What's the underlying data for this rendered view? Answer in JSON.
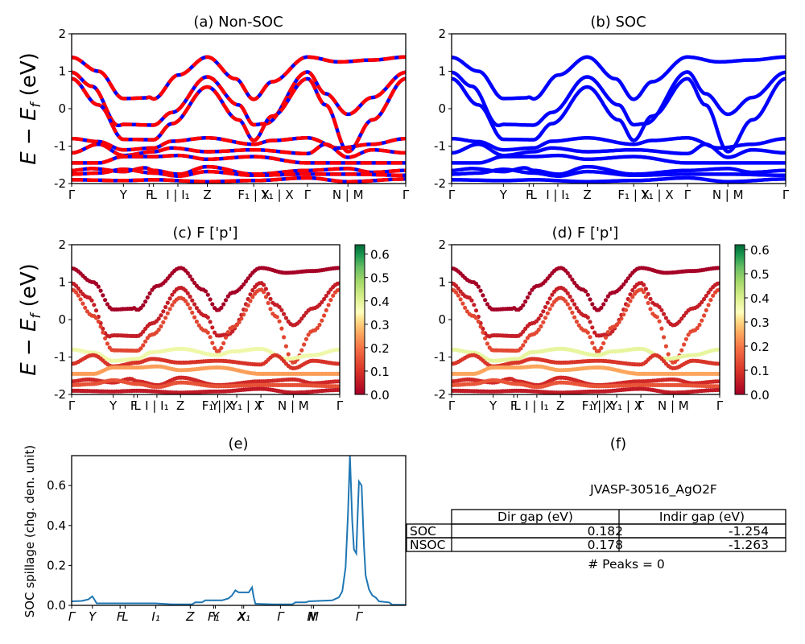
{
  "chart_data": [
    {
      "id": "a",
      "type": "line",
      "title": "(a) Non-SOC",
      "ylabel": "E − E_f (eV)",
      "ylim": [
        -2,
        2
      ],
      "yticks": [
        -2,
        -1,
        0,
        1,
        2
      ],
      "x_ticks": [
        {
          "pos": 0.0,
          "label": "Γ"
        },
        {
          "pos": 0.155,
          "label": "Y"
        },
        {
          "pos": 0.232,
          "label": "F"
        },
        {
          "pos": 0.245,
          "label": "L"
        },
        {
          "pos": 0.318,
          "label": "I | I₁"
        },
        {
          "pos": 0.406,
          "label": "Z"
        },
        {
          "pos": 0.545,
          "label": "F₁ | X"
        },
        {
          "pos": 0.616,
          "label": "Y₁ | X"
        },
        {
          "pos": 0.706,
          "label": "Γ"
        },
        {
          "pos": 0.827,
          "label": "N | M"
        },
        {
          "pos": 1.0,
          "label": "Γ"
        }
      ],
      "series_style": "red solid overlaid with blue dashed (two calculations coincide)",
      "colors": {
        "primary": "#ff0000",
        "secondary": "#0000ff"
      },
      "bands": [
        [
          [
            0,
            1.37
          ],
          [
            0.08,
            1.0
          ],
          [
            0.155,
            0.27
          ],
          [
            0.225,
            0.29
          ],
          [
            0.232,
            0.31
          ],
          [
            0.245,
            0.26
          ],
          [
            0.32,
            0.9
          ],
          [
            0.406,
            1.38
          ],
          [
            0.49,
            0.8
          ],
          [
            0.545,
            0.25
          ],
          [
            0.6,
            0.72
          ],
          [
            0.706,
            1.38
          ],
          [
            0.8,
            1.25
          ],
          [
            0.9,
            1.3
          ],
          [
            1.0,
            1.38
          ]
        ],
        [
          [
            0,
            0.97
          ],
          [
            0.06,
            0.6
          ],
          [
            0.14,
            -0.45
          ],
          [
            0.155,
            -0.42
          ],
          [
            0.245,
            -0.44
          ],
          [
            0.3,
            -0.1
          ],
          [
            0.406,
            0.85
          ],
          [
            0.5,
            0.1
          ],
          [
            0.545,
            -0.43
          ],
          [
            0.58,
            -0.4
          ],
          [
            0.706,
            0.98
          ],
          [
            0.76,
            0.4
          ],
          [
            0.827,
            -0.15
          ],
          [
            0.9,
            0.3
          ],
          [
            1.0,
            0.97
          ]
        ],
        [
          [
            0,
            0.8
          ],
          [
            0.08,
            0.1
          ],
          [
            0.155,
            -0.82
          ],
          [
            0.245,
            -0.83
          ],
          [
            0.3,
            -0.4
          ],
          [
            0.406,
            0.58
          ],
          [
            0.5,
            -0.3
          ],
          [
            0.545,
            -0.85
          ],
          [
            0.6,
            -0.2
          ],
          [
            0.706,
            0.8
          ],
          [
            0.76,
            0.1
          ],
          [
            0.827,
            -1.15
          ],
          [
            0.9,
            -0.3
          ],
          [
            1.0,
            0.8
          ]
        ],
        [
          [
            0,
            -0.8
          ],
          [
            0.08,
            -0.88
          ],
          [
            0.155,
            -1.1
          ],
          [
            0.245,
            -1.05
          ],
          [
            0.3,
            -0.87
          ],
          [
            0.406,
            -0.78
          ],
          [
            0.545,
            -0.95
          ],
          [
            0.6,
            -0.85
          ],
          [
            0.706,
            -0.78
          ],
          [
            0.8,
            -1.05
          ],
          [
            0.9,
            -0.95
          ],
          [
            1.0,
            -0.8
          ]
        ],
        [
          [
            0,
            -1.18
          ],
          [
            0.08,
            -0.95
          ],
          [
            0.155,
            -1.25
          ],
          [
            0.245,
            -1.15
          ],
          [
            0.3,
            -1.05
          ],
          [
            0.406,
            -1.15
          ],
          [
            0.545,
            -1.1
          ],
          [
            0.706,
            -1.2
          ],
          [
            0.76,
            -0.95
          ],
          [
            0.827,
            -1.3
          ],
          [
            0.9,
            -1.1
          ],
          [
            1.0,
            -1.18
          ]
        ],
        [
          [
            0,
            -1.45
          ],
          [
            0.08,
            -1.45
          ],
          [
            0.155,
            -1.28
          ],
          [
            0.245,
            -1.28
          ],
          [
            0.32,
            -1.25
          ],
          [
            0.406,
            -1.35
          ],
          [
            0.545,
            -1.28
          ],
          [
            0.706,
            -1.45
          ],
          [
            0.827,
            -1.45
          ],
          [
            1.0,
            -1.45
          ]
        ],
        [
          [
            0,
            -1.65
          ],
          [
            0.06,
            -1.6
          ],
          [
            0.155,
            -1.68
          ],
          [
            0.22,
            -1.58
          ],
          [
            0.245,
            -1.65
          ],
          [
            0.32,
            -1.75
          ],
          [
            0.406,
            -1.55
          ],
          [
            0.545,
            -1.75
          ],
          [
            0.706,
            -1.65
          ],
          [
            0.827,
            -1.6
          ],
          [
            0.9,
            -1.7
          ],
          [
            1.0,
            -1.65
          ]
        ],
        [
          [
            0,
            -1.75
          ],
          [
            0.08,
            -1.72
          ],
          [
            0.155,
            -1.62
          ],
          [
            0.245,
            -1.72
          ],
          [
            0.32,
            -1.8
          ],
          [
            0.406,
            -1.68
          ],
          [
            0.545,
            -1.78
          ],
          [
            0.706,
            -1.75
          ],
          [
            0.827,
            -1.75
          ],
          [
            1.0,
            -1.78
          ]
        ],
        [
          [
            0,
            -1.9
          ],
          [
            0.155,
            -1.92
          ],
          [
            0.245,
            -1.9
          ],
          [
            0.406,
            -1.95
          ],
          [
            0.545,
            -1.92
          ],
          [
            0.706,
            -1.85
          ],
          [
            0.827,
            -1.95
          ],
          [
            1.0,
            -1.88
          ]
        ]
      ]
    },
    {
      "id": "b",
      "type": "line",
      "title": "(b) SOC",
      "ylim": [
        -2,
        2
      ],
      "yticks": [
        -2,
        -1,
        0,
        1,
        2
      ],
      "x_ticks_same_as": "a",
      "colors": {
        "primary": "#0000ff"
      },
      "bands_same_as": "a"
    },
    {
      "id": "c",
      "type": "scatter",
      "title": "(c)  F ['p']",
      "ylabel": "E − E_f (eV)",
      "ylim": [
        -2,
        2
      ],
      "yticks": [
        -2,
        -1,
        0,
        1,
        2
      ],
      "x_ticks": [
        {
          "pos": 0.0,
          "label": "Γ"
        },
        {
          "pos": 0.155,
          "label": "Y"
        },
        {
          "pos": 0.232,
          "label": "F"
        },
        {
          "pos": 0.245,
          "label": "L"
        },
        {
          "pos": 0.318,
          "label": "I | I₁"
        },
        {
          "pos": 0.406,
          "label": "Z"
        },
        {
          "pos": 0.545,
          "label": "F₁ | X"
        },
        {
          "pos": 0.616,
          "label": "Y | Y₁ | X"
        },
        {
          "pos": 0.706,
          "label": "Γ"
        },
        {
          "pos": 0.827,
          "label": "N | M"
        },
        {
          "pos": 1.0,
          "label": "Γ"
        }
      ],
      "colorbar": {
        "cmap": "RdYlGn",
        "range": [
          0.0,
          0.64
        ],
        "ticks": [
          0.0,
          0.1,
          0.2,
          0.3,
          0.4,
          0.5,
          0.6
        ]
      },
      "band_weights": [
        0.0,
        0.06,
        0.13,
        0.38,
        0.1,
        0.25,
        0.08,
        0.15,
        0.05
      ]
    },
    {
      "id": "d",
      "type": "scatter",
      "title": "(d) F ['p']",
      "ylim": [
        -2,
        2
      ],
      "yticks": [
        -2,
        -1,
        0,
        1,
        2
      ],
      "x_ticks_same_as": "c",
      "colorbar": {
        "cmap": "RdYlGn",
        "range": [
          0.0,
          0.62
        ],
        "ticks": [
          0.0,
          0.1,
          0.2,
          0.3,
          0.4,
          0.5,
          0.6
        ]
      },
      "band_weights": [
        0.0,
        0.06,
        0.13,
        0.38,
        0.1,
        0.25,
        0.08,
        0.15,
        0.05
      ]
    },
    {
      "id": "e",
      "type": "line",
      "title": "(e)",
      "ylabel": "SOC spillage (chg. den. unit)",
      "ylim": [
        0,
        0.75
      ],
      "yticks": [
        0.0,
        0.2,
        0.4,
        0.6
      ],
      "x_ticks": [
        {
          "pos": 0.0,
          "label": "Γ"
        },
        {
          "pos": 0.062,
          "label": "Y"
        },
        {
          "pos": 0.145,
          "label": "F"
        },
        {
          "pos": 0.16,
          "label": "L"
        },
        {
          "pos": 0.252,
          "label": "I₁"
        },
        {
          "pos": 0.355,
          "label": "Z"
        },
        {
          "pos": 0.425,
          "label": "F₁"
        },
        {
          "pos": 0.43,
          "label": "Y"
        },
        {
          "pos": 0.51,
          "label": "X"
        },
        {
          "pos": 0.515,
          "label": "X₁"
        },
        {
          "pos": 0.625,
          "label": "Γ"
        },
        {
          "pos": 0.718,
          "label": "N"
        },
        {
          "pos": 0.724,
          "label": "M"
        },
        {
          "pos": 0.86,
          "label": "Γ"
        }
      ],
      "color": "#1f77b4",
      "points": [
        [
          0,
          0.02
        ],
        [
          0.03,
          0.022
        ],
        [
          0.05,
          0.03
        ],
        [
          0.062,
          0.045
        ],
        [
          0.068,
          0.03
        ],
        [
          0.075,
          0.01
        ],
        [
          0.2,
          0.01
        ],
        [
          0.25,
          0.01
        ],
        [
          0.3,
          0.005
        ],
        [
          0.36,
          0.005
        ],
        [
          0.37,
          0.015
        ],
        [
          0.39,
          0.015
        ],
        [
          0.4,
          0.025
        ],
        [
          0.45,
          0.025
        ],
        [
          0.47,
          0.035
        ],
        [
          0.48,
          0.05
        ],
        [
          0.49,
          0.075
        ],
        [
          0.5,
          0.065
        ],
        [
          0.53,
          0.065
        ],
        [
          0.54,
          0.09
        ],
        [
          0.545,
          0.04
        ],
        [
          0.55,
          0.008
        ],
        [
          0.6,
          0.005
        ],
        [
          0.66,
          0.005
        ],
        [
          0.67,
          0.015
        ],
        [
          0.7,
          0.015
        ],
        [
          0.71,
          0.02
        ],
        [
          0.78,
          0.025
        ],
        [
          0.8,
          0.04
        ],
        [
          0.81,
          0.07
        ],
        [
          0.82,
          0.19
        ],
        [
          0.827,
          0.45
        ],
        [
          0.833,
          0.75
        ],
        [
          0.84,
          0.42
        ],
        [
          0.845,
          0.28
        ],
        [
          0.852,
          0.26
        ],
        [
          0.855,
          0.4
        ],
        [
          0.86,
          0.62
        ],
        [
          0.868,
          0.6
        ],
        [
          0.875,
          0.3
        ],
        [
          0.88,
          0.15
        ],
        [
          0.89,
          0.08
        ],
        [
          0.9,
          0.05
        ],
        [
          0.91,
          0.04
        ],
        [
          0.92,
          0.02
        ],
        [
          0.95,
          0.015
        ],
        [
          0.96,
          0.003
        ],
        [
          1.0,
          0.003
        ]
      ]
    }
  ],
  "info_panel": {
    "title": "(f)",
    "material": "JVASP-30516_AgO2F",
    "table": {
      "columns": [
        "",
        "Dir gap (eV)",
        "Indir gap (eV)"
      ],
      "rows": [
        {
          "label": "SOC",
          "dir_gap": "0.182",
          "indir_gap": "-1.254"
        },
        {
          "label": "NSOC",
          "dir_gap": "0.178",
          "indir_gap": "-1.263"
        }
      ]
    },
    "peaks_text": "# Peaks = 0"
  }
}
